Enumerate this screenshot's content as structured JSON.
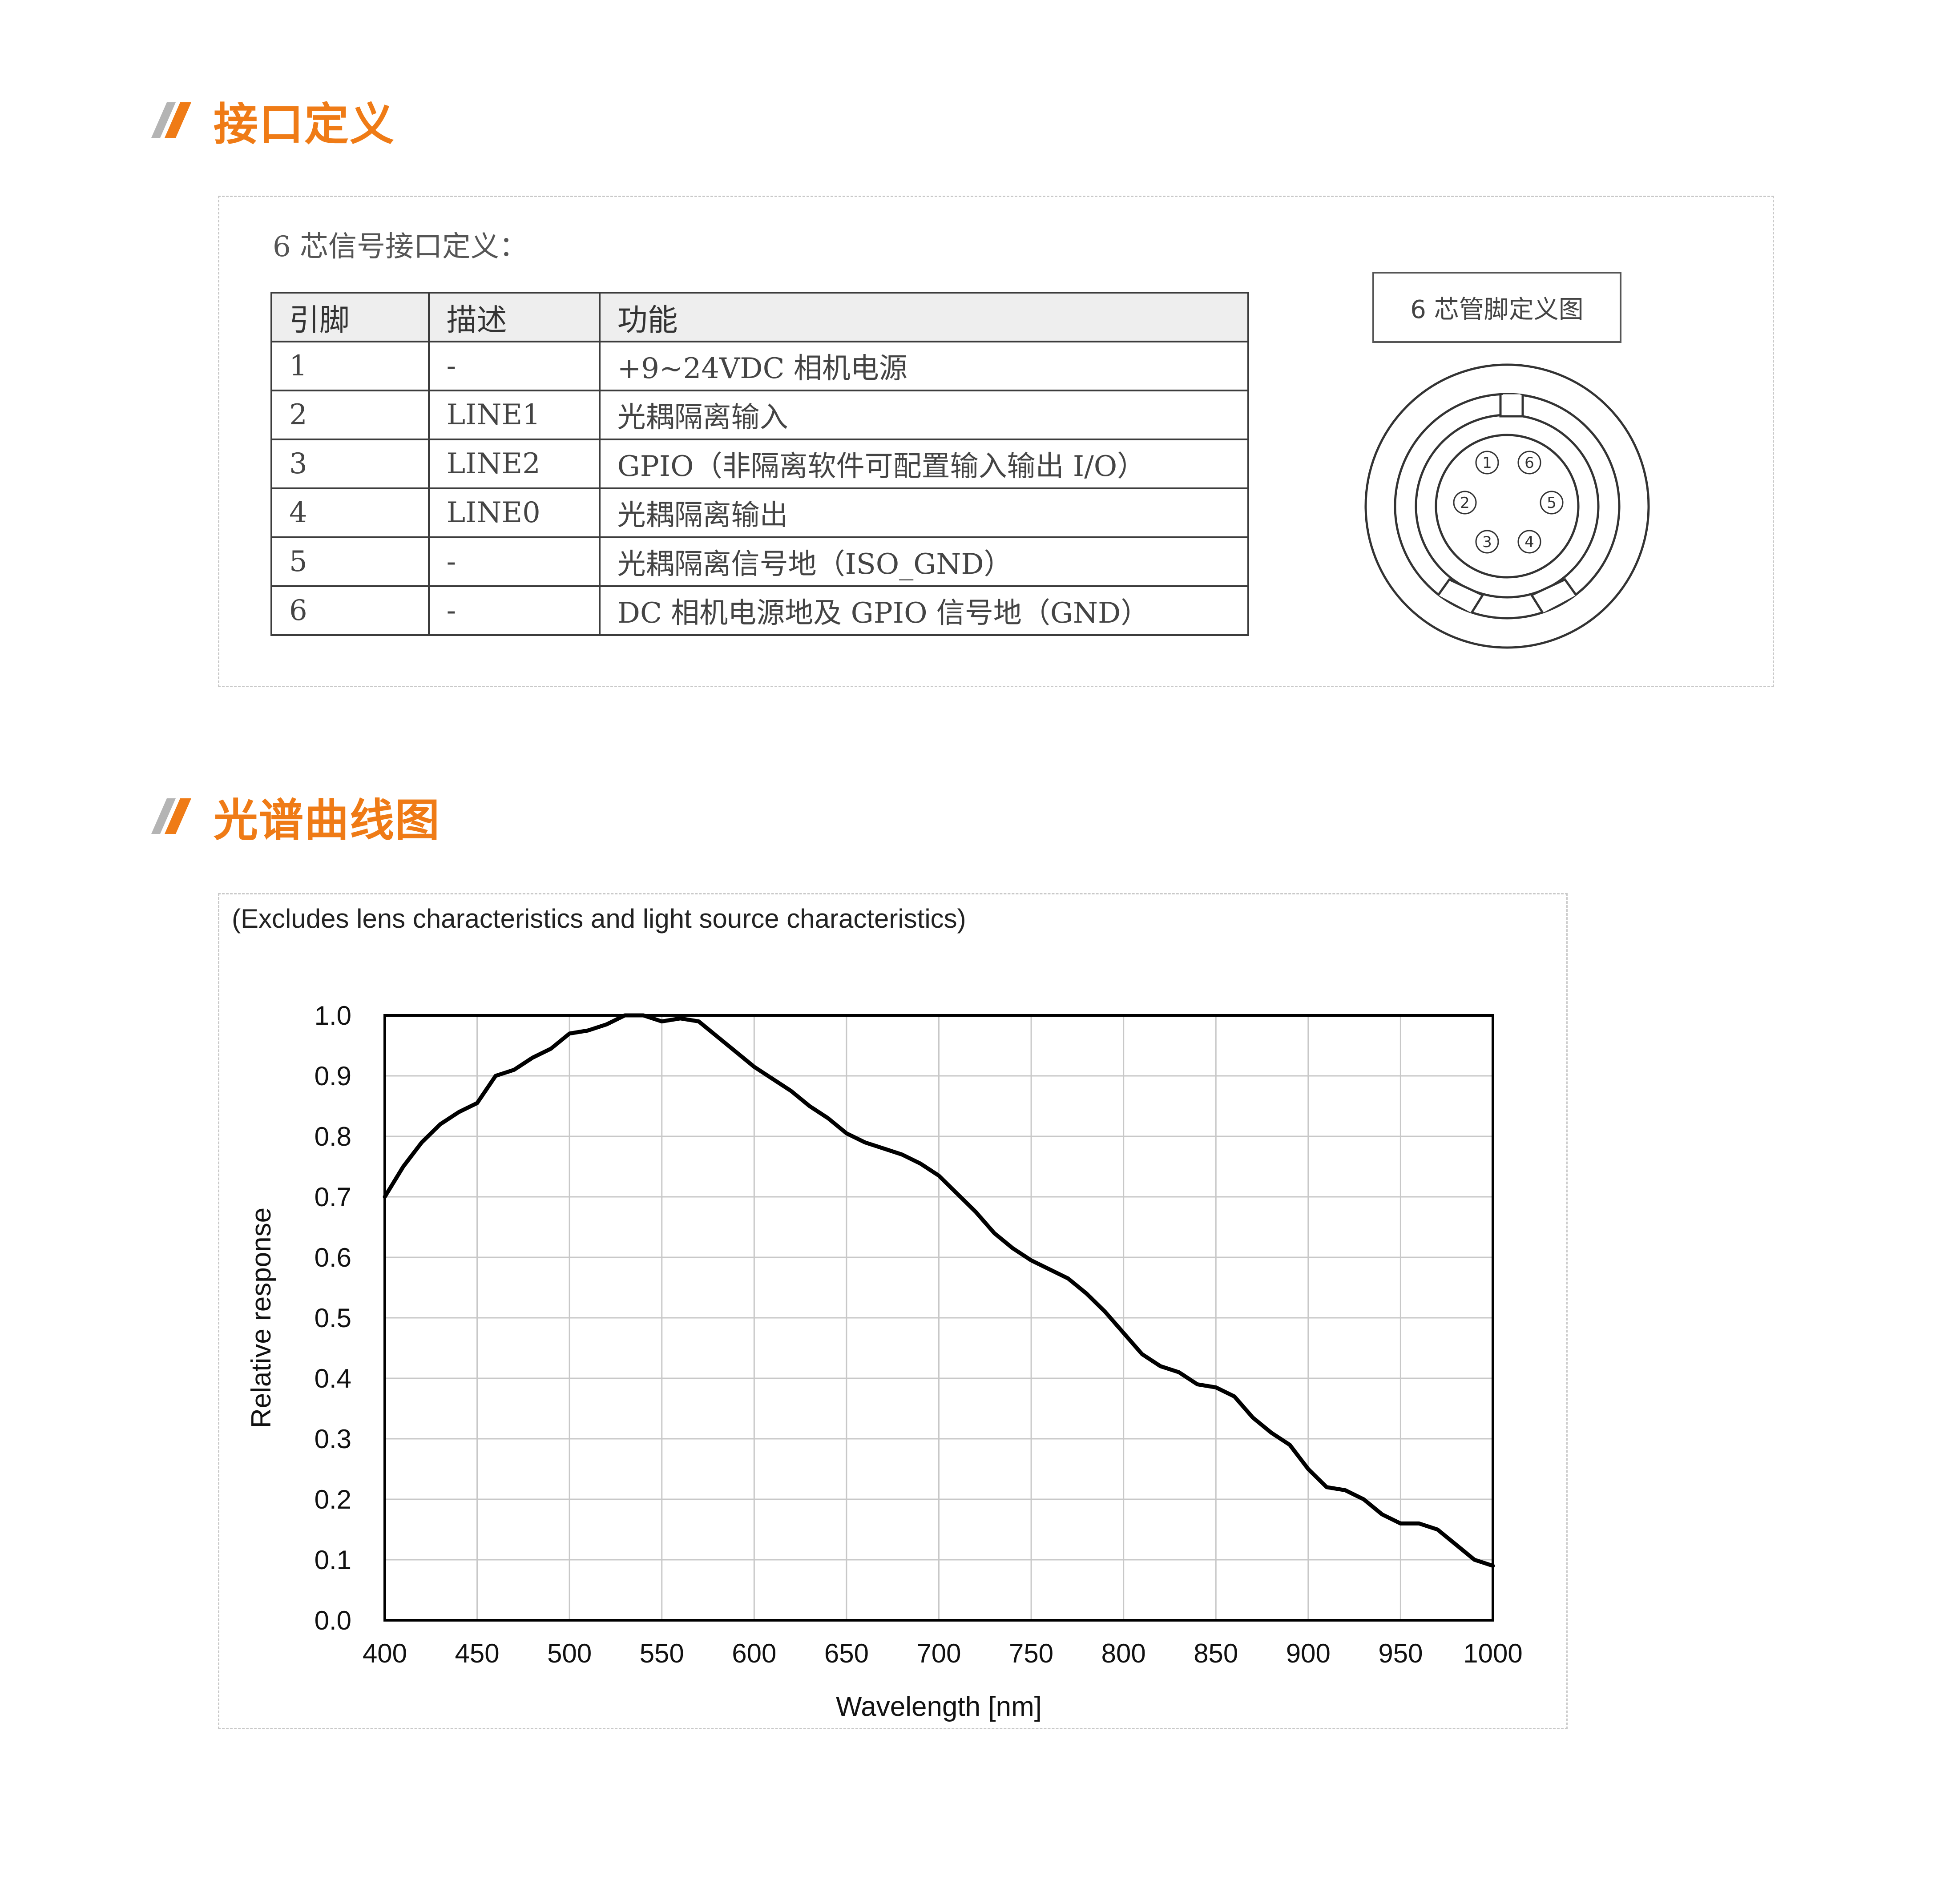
{
  "sections": {
    "interface_title": "接口定义",
    "spectrum_title": "光谱曲线图"
  },
  "interface": {
    "caption": "6 芯信号接口定义：",
    "columns": [
      "引脚",
      "描述",
      "功能"
    ],
    "rows": [
      [
        "1",
        "-",
        "+9~24VDC 相机电源"
      ],
      [
        "2",
        "LINE1",
        "光耦隔离输入"
      ],
      [
        "3",
        "LINE2",
        "GPIO（非隔离软件可配置输入输出 I/O）"
      ],
      [
        "4",
        "LINE0",
        "光耦隔离输出"
      ],
      [
        "5",
        "-",
        "光耦隔离信号地（ISO_GND）"
      ],
      [
        "6",
        "-",
        "DC 相机电源地及 GPIO 信号地（GND）"
      ]
    ],
    "diagram_label": "6 芯管脚定义图",
    "pin_numbers": [
      "1",
      "2",
      "3",
      "4",
      "5",
      "6"
    ]
  },
  "colors": {
    "accent": "#ef7b16",
    "mark_gray": "#b4b4b4",
    "curve": "#000000"
  },
  "chart_data": {
    "type": "line",
    "note": "(Excludes lens characteristics and light source characteristics)",
    "title": "",
    "xlabel": "Wavelength [nm]",
    "ylabel": "Relative response",
    "xlim": [
      400,
      1000
    ],
    "ylim": [
      0.0,
      1.0
    ],
    "x_ticks": [
      "400",
      "450",
      "500",
      "550",
      "600",
      "650",
      "700",
      "750",
      "800",
      "850",
      "900",
      "950",
      "1000"
    ],
    "y_ticks": [
      "0.0",
      "0.1",
      "0.2",
      "0.3",
      "0.4",
      "0.5",
      "0.6",
      "0.7",
      "0.8",
      "0.9",
      "1.0"
    ],
    "grid": true,
    "series": [
      {
        "x": [
          400,
          410,
          420,
          430,
          440,
          450,
          460,
          470,
          480,
          490,
          500,
          510,
          520,
          530,
          540,
          550,
          560,
          570,
          580,
          590,
          600,
          610,
          620,
          630,
          640,
          650,
          660,
          670,
          680,
          690,
          700,
          710,
          720,
          730,
          740,
          750,
          760,
          770,
          780,
          790,
          800,
          810,
          820,
          830,
          840,
          850,
          860,
          870,
          880,
          890,
          900,
          910,
          920,
          930,
          940,
          950,
          960,
          970,
          980,
          990,
          1000
        ],
        "y": [
          0.7,
          0.75,
          0.79,
          0.82,
          0.84,
          0.855,
          0.9,
          0.91,
          0.93,
          0.945,
          0.97,
          0.975,
          0.985,
          1.0,
          1.0,
          0.99,
          0.995,
          0.99,
          0.965,
          0.94,
          0.915,
          0.895,
          0.875,
          0.85,
          0.83,
          0.805,
          0.79,
          0.78,
          0.77,
          0.755,
          0.735,
          0.705,
          0.675,
          0.64,
          0.615,
          0.595,
          0.58,
          0.565,
          0.54,
          0.51,
          0.475,
          0.44,
          0.42,
          0.41,
          0.39,
          0.385,
          0.37,
          0.335,
          0.31,
          0.29,
          0.25,
          0.22,
          0.215,
          0.2,
          0.175,
          0.16,
          0.16,
          0.15,
          0.125,
          0.1,
          0.09
        ]
      }
    ]
  }
}
